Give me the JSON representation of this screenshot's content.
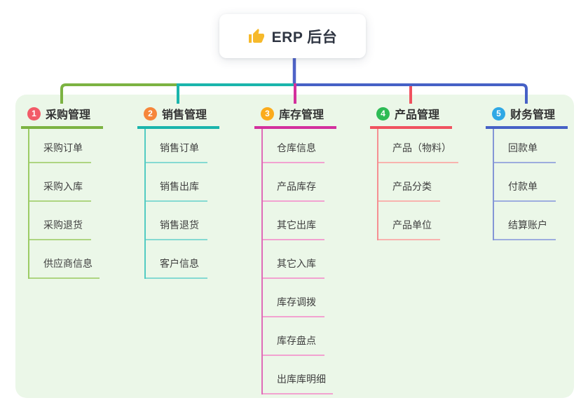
{
  "root": {
    "title": "ERP 后台",
    "icon": "thumbs-up-icon",
    "icon_color": "#f6b92b",
    "trunk_color": "#4f63c8"
  },
  "panel": {
    "bg_color": "#ebf7e8"
  },
  "branches": [
    {
      "num": "1",
      "title": "采购管理",
      "badge_color": "#f25b68",
      "line_color": "#7cb342",
      "spine_color": "#9ccc65",
      "leaf_line_color": "#aed581",
      "children": [
        "采购订单",
        "采购入库",
        "采购退货",
        "供应商信息"
      ]
    },
    {
      "num": "2",
      "title": "销售管理",
      "badge_color": "#f6863b",
      "line_color": "#1ab5ac",
      "spine_color": "#52cbc2",
      "leaf_line_color": "#85dad2",
      "children": [
        "销售订单",
        "销售出库",
        "销售退货",
        "客户信息"
      ]
    },
    {
      "num": "3",
      "title": "库存管理",
      "badge_color": "#fbab1c",
      "line_color": "#d3309d",
      "spine_color": "#df6cb8",
      "leaf_line_color": "#f2a2d0",
      "children": [
        "仓库信息",
        "产品库存",
        "其它出库",
        "其它入库",
        "库存调拨",
        "库存盘点",
        "出库库明细"
      ]
    },
    {
      "num": "4",
      "title": "产品管理",
      "badge_color": "#2dbb55",
      "line_color": "#f0525f",
      "spine_color": "#f58f92",
      "leaf_line_color": "#f8b3ae",
      "children": [
        "产品（物料）",
        "产品分类",
        "产品单位"
      ]
    },
    {
      "num": "5",
      "title": "财务管理",
      "badge_color": "#2fa8e5",
      "line_color": "#4661c6",
      "spine_color": "#8496d6",
      "leaf_line_color": "#9dadde",
      "children": [
        "回款单",
        "付款单",
        "结算账户"
      ]
    }
  ]
}
